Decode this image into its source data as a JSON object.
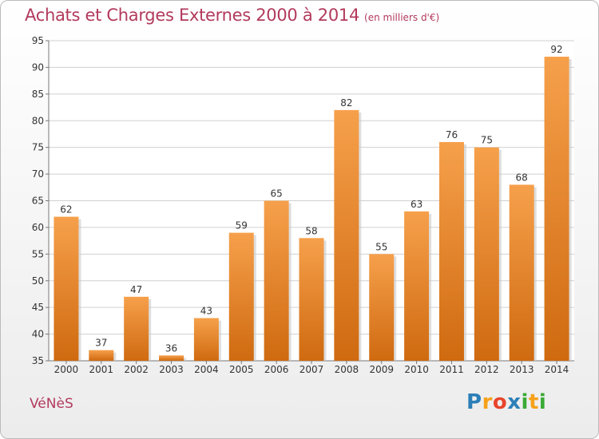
{
  "title": "Achats et Charges Externes 2000 à 2014",
  "subtitle": "(en milliers d'€)",
  "commune": "VéNèS",
  "logo": {
    "letters": [
      {
        "ch": "P",
        "color": "#2c7fb8"
      },
      {
        "ch": "r",
        "color": "#f7a11a"
      },
      {
        "ch": "o",
        "color": "#e8452c"
      },
      {
        "ch": "x",
        "color": "#2c7fb8"
      },
      {
        "ch": "i",
        "color": "#3aaa35"
      },
      {
        "ch": "t",
        "color": "#f7a11a"
      },
      {
        "ch": "i",
        "color": "#3aaa35"
      }
    ]
  },
  "colors": {
    "bar_light": "#f6a04b",
    "bar_dark": "#cf6a10",
    "title": "#b23a5c"
  },
  "chart_data": {
    "type": "bar",
    "categories": [
      "2000",
      "2001",
      "2002",
      "2003",
      "2004",
      "2005",
      "2006",
      "2007",
      "2008",
      "2009",
      "2010",
      "2011",
      "2012",
      "2013",
      "2014"
    ],
    "values": [
      62,
      37,
      47,
      36,
      43,
      59,
      65,
      58,
      82,
      55,
      63,
      76,
      75,
      68,
      92
    ],
    "ylim": [
      35,
      95
    ],
    "yticks": [
      35,
      40,
      45,
      50,
      55,
      60,
      65,
      70,
      75,
      80,
      85,
      90,
      95
    ],
    "grid": true,
    "title": "Achats et Charges Externes 2000 à 2014",
    "xlabel": "",
    "ylabel": ""
  }
}
